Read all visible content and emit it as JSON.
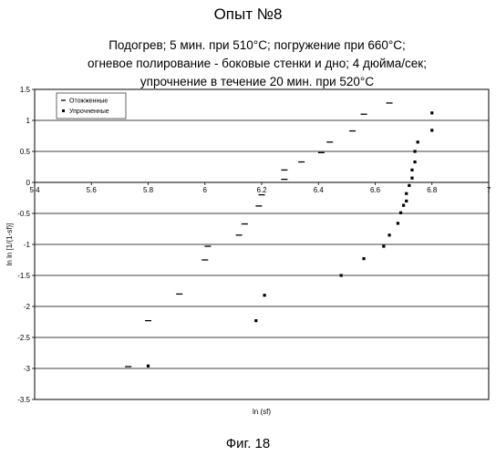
{
  "page": {
    "title": "Опыт №8",
    "subtitle_lines": [
      "Подогрев; 5 мин. при 510°С; погружение при 660°С;",
      "огневое полирование - боковые стенки и дно; 4 дюйма/сек;",
      "упрочнение в течение 20 мин. при 520°С"
    ],
    "caption": "Фиг. 18"
  },
  "chart_data": {
    "type": "scatter",
    "title": "Опыт №8",
    "xlabel": "ln (sf)",
    "ylabel": "ln ln [1/(1-sf)]",
    "xlim": [
      5.4,
      7
    ],
    "ylim": [
      -3.5,
      1.5
    ],
    "x_ticks": [
      "5.4",
      "5.6",
      "5.8",
      "6",
      "6.2",
      "6.4",
      "6.6",
      "6.8",
      "7"
    ],
    "y_ticks": [
      "1.5",
      "1",
      "0.5",
      "0",
      "-0.5",
      "-1",
      "-1.5",
      "-2",
      "-2.5",
      "-3",
      "-3.5"
    ],
    "grid": true,
    "legend_position": "top-left",
    "series": [
      {
        "name": "Отожженные",
        "marker": "dash",
        "color": "#000000",
        "points": [
          [
            5.73,
            -2.97
          ],
          [
            5.8,
            -2.23
          ],
          [
            5.91,
            -1.8
          ],
          [
            6.0,
            -1.25
          ],
          [
            6.01,
            -1.03
          ],
          [
            6.12,
            -0.85
          ],
          [
            6.14,
            -0.67
          ],
          [
            6.19,
            -0.38
          ],
          [
            6.2,
            -0.2
          ],
          [
            6.28,
            0.05
          ],
          [
            6.28,
            0.2
          ],
          [
            6.34,
            0.33
          ],
          [
            6.41,
            0.48
          ],
          [
            6.44,
            0.65
          ],
          [
            6.52,
            0.83
          ],
          [
            6.56,
            1.1
          ],
          [
            6.65,
            1.28
          ]
        ]
      },
      {
        "name": "Упрочненные",
        "marker": "square",
        "color": "#000000",
        "points": [
          [
            5.8,
            -2.96
          ],
          [
            6.18,
            -2.23
          ],
          [
            6.21,
            -1.82
          ],
          [
            6.48,
            -1.5
          ],
          [
            6.56,
            -1.23
          ],
          [
            6.63,
            -1.03
          ],
          [
            6.65,
            -0.85
          ],
          [
            6.68,
            -0.66
          ],
          [
            6.69,
            -0.49
          ],
          [
            6.7,
            -0.37
          ],
          [
            6.71,
            -0.3
          ],
          [
            6.71,
            -0.18
          ],
          [
            6.72,
            -0.05
          ],
          [
            6.73,
            0.07
          ],
          [
            6.73,
            0.2
          ],
          [
            6.74,
            0.33
          ],
          [
            6.74,
            0.5
          ],
          [
            6.75,
            0.65
          ],
          [
            6.8,
            0.84
          ],
          [
            6.8,
            1.12
          ]
        ]
      }
    ]
  }
}
